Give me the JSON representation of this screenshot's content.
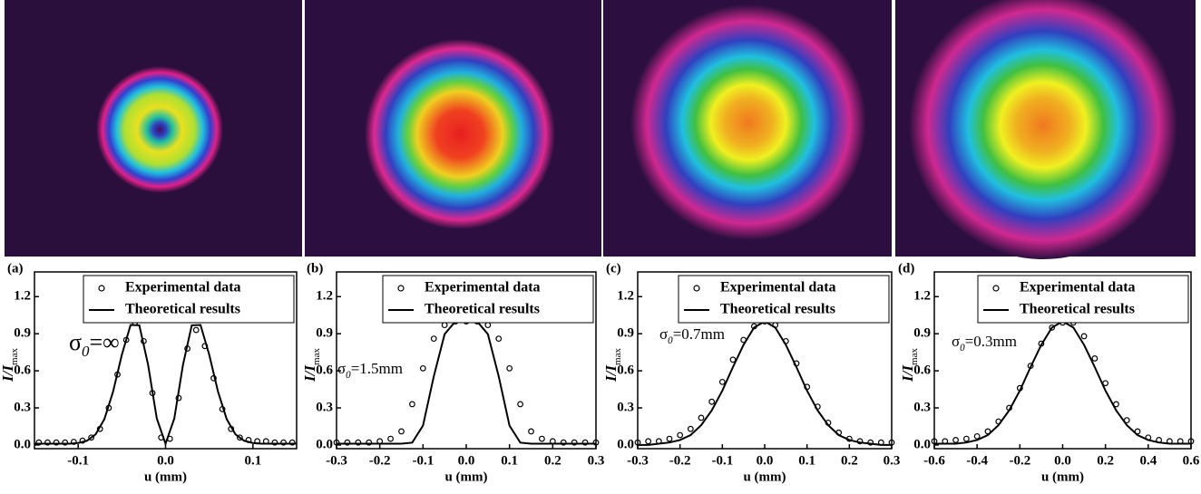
{
  "chart_data": [
    {
      "type": "line",
      "label": "(a)",
      "annotation": {
        "symbol": "σ",
        "subscript": "0",
        "text": "=∞"
      },
      "xlabel": "u (mm)",
      "ylabel": "I/I",
      "ylabel_sub": "max",
      "xlim": [
        -0.15,
        0.15
      ],
      "xticks": [
        -0.1,
        {
          "value": 0,
          "label": "0.0"
        },
        0.1
      ],
      "ylim": [
        -0.03,
        1.4
      ],
      "yticks": [
        {
          "value": 0,
          "label": "0.0"
        },
        0.3,
        0.6,
        0.9,
        1.2
      ],
      "legend": "upper right",
      "series": [
        {
          "name": "Experimental data",
          "style": "markers",
          "color": "#000000",
          "x": [
            -0.145,
            -0.135,
            -0.125,
            -0.115,
            -0.105,
            -0.095,
            -0.085,
            -0.075,
            -0.065,
            -0.055,
            -0.045,
            -0.035,
            -0.025,
            -0.015,
            -0.005,
            0.005,
            0.015,
            0.025,
            0.035,
            0.045,
            0.055,
            0.065,
            0.075,
            0.085,
            0.095,
            0.105,
            0.115,
            0.125,
            0.135,
            0.145
          ],
          "values": [
            0.02,
            0.02,
            0.02,
            0.02,
            0.025,
            0.035,
            0.06,
            0.13,
            0.3,
            0.57,
            0.85,
            0.99,
            0.84,
            0.42,
            0.06,
            0.05,
            0.38,
            0.78,
            0.93,
            0.8,
            0.54,
            0.29,
            0.13,
            0.06,
            0.04,
            0.03,
            0.03,
            0.02,
            0.02,
            0.02
          ]
        },
        {
          "name": "Theoretical results",
          "style": "line",
          "color": "#000000",
          "x": [
            -0.15,
            -0.14,
            -0.13,
            -0.12,
            -0.11,
            -0.1,
            -0.09,
            -0.08,
            -0.07,
            -0.06,
            -0.05,
            -0.04,
            -0.03,
            -0.02,
            -0.01,
            0,
            0.01,
            0.02,
            0.03,
            0.04,
            0.05,
            0.06,
            0.07,
            0.08,
            0.09,
            0.1,
            0.11,
            0.12,
            0.13,
            0.14,
            0.15
          ],
          "values": [
            0.01,
            0.01,
            0.01,
            0.01,
            0.01,
            0.016,
            0.034,
            0.086,
            0.209,
            0.433,
            0.73,
            0.971,
            0.968,
            0.65,
            0.214,
            0.01,
            0.214,
            0.65,
            0.968,
            0.971,
            0.73,
            0.433,
            0.209,
            0.086,
            0.034,
            0.016,
            0.01,
            0.01,
            0.01,
            0.01,
            0.01
          ]
        }
      ]
    },
    {
      "type": "line",
      "label": "(b)",
      "annotation": {
        "symbol": "σ",
        "subscript": "0",
        "text": "=1.5mm"
      },
      "xlabel": "u (mm)",
      "ylabel": "I/I",
      "ylabel_sub": "max",
      "xlim": [
        -0.3,
        0.3
      ],
      "xticks": [
        -0.3,
        -0.2,
        -0.1,
        {
          "value": 0,
          "label": "0.0"
        },
        0.1,
        0.2,
        0.3
      ],
      "ylim": [
        -0.03,
        1.4
      ],
      "yticks": [
        {
          "value": 0,
          "label": "0.0"
        },
        0.3,
        0.6,
        0.9,
        1.2
      ],
      "legend": "upper right",
      "series": [
        {
          "name": "Experimental data",
          "style": "markers",
          "color": "#000000",
          "x": [
            -0.3,
            -0.275,
            -0.25,
            -0.225,
            -0.2,
            -0.175,
            -0.15,
            -0.125,
            -0.1,
            -0.075,
            -0.05,
            -0.025,
            0,
            0.025,
            0.05,
            0.075,
            0.1,
            0.125,
            0.15,
            0.175,
            0.2,
            0.225,
            0.25,
            0.275,
            0.3
          ],
          "values": [
            0.02,
            0.02,
            0.02,
            0.02,
            0.03,
            0.05,
            0.11,
            0.33,
            0.62,
            0.86,
            0.97,
            1.0,
            1.0,
            1.0,
            0.97,
            0.86,
            0.62,
            0.33,
            0.11,
            0.05,
            0.03,
            0.02,
            0.02,
            0.02,
            0.02
          ]
        },
        {
          "name": "Theoretical results",
          "style": "line",
          "color": "#000000",
          "x": [
            -0.3,
            -0.275,
            -0.25,
            -0.225,
            -0.2,
            -0.175,
            -0.15,
            -0.125,
            -0.1,
            -0.075,
            -0.05,
            -0.025,
            0,
            0.025,
            0.05,
            0.075,
            0.1,
            0.125,
            0.15,
            0.175,
            0.2,
            0.225,
            0.25,
            0.275,
            0.3
          ],
          "values": [
            0.01,
            0.01,
            0.01,
            0.01,
            0.01,
            0.01,
            0.01,
            0.019,
            0.157,
            0.556,
            0.897,
            1.0,
            1.0,
            1.0,
            0.897,
            0.556,
            0.157,
            0.019,
            0.01,
            0.01,
            0.01,
            0.01,
            0.01,
            0.01,
            0.01
          ]
        }
      ]
    },
    {
      "type": "line",
      "label": "(c)",
      "annotation": {
        "symbol": "σ",
        "subscript": "0",
        "text": "=0.7mm"
      },
      "xlabel": "u (mm)",
      "ylabel": "I/I",
      "ylabel_sub": "max",
      "xlim": [
        -0.3,
        0.3
      ],
      "xticks": [
        -0.3,
        -0.2,
        -0.1,
        {
          "value": 0,
          "label": "0.0"
        },
        0.1,
        0.2,
        0.3
      ],
      "ylim": [
        -0.03,
        1.4
      ],
      "yticks": [
        {
          "value": 0,
          "label": "0.0"
        },
        0.3,
        0.6,
        0.9,
        1.2
      ],
      "legend": "upper right",
      "series": [
        {
          "name": "Experimental data",
          "style": "markers",
          "color": "#000000",
          "x": [
            -0.3,
            -0.275,
            -0.25,
            -0.225,
            -0.2,
            -0.175,
            -0.15,
            -0.125,
            -0.1,
            -0.075,
            -0.05,
            -0.025,
            0,
            0.025,
            0.05,
            0.075,
            0.1,
            0.125,
            0.15,
            0.175,
            0.2,
            0.225,
            0.25,
            0.275,
            0.3
          ],
          "values": [
            0.02,
            0.03,
            0.03,
            0.05,
            0.08,
            0.13,
            0.22,
            0.35,
            0.51,
            0.69,
            0.85,
            0.96,
            1.0,
            0.97,
            0.84,
            0.66,
            0.47,
            0.31,
            0.18,
            0.1,
            0.05,
            0.03,
            0.02,
            0.02,
            0.02
          ]
        },
        {
          "name": "Theoretical results",
          "style": "line",
          "color": "#000000",
          "x": [
            -0.3,
            -0.275,
            -0.25,
            -0.225,
            -0.2,
            -0.175,
            -0.15,
            -0.125,
            -0.1,
            -0.075,
            -0.05,
            -0.025,
            0,
            0.025,
            0.05,
            0.075,
            0.1,
            0.125,
            0.15,
            0.175,
            0.2,
            0.225,
            0.25,
            0.275,
            0.3
          ],
          "values": [
            0,
            0,
            0.01,
            0.02,
            0.04,
            0.08,
            0.16,
            0.28,
            0.44,
            0.63,
            0.81,
            0.95,
            1.0,
            0.95,
            0.81,
            0.63,
            0.44,
            0.28,
            0.16,
            0.08,
            0.04,
            0.02,
            0.01,
            0,
            0
          ]
        }
      ]
    },
    {
      "type": "line",
      "label": "(d)",
      "annotation": {
        "symbol": "σ",
        "subscript": "0",
        "text": "=0.3mm"
      },
      "xlabel": "u (mm)",
      "ylabel": "I/I",
      "ylabel_sub": "max",
      "xlim": [
        -0.6,
        0.6
      ],
      "xticks": [
        -0.6,
        -0.4,
        -0.2,
        {
          "value": 0,
          "label": "0.0"
        },
        0.2,
        0.4,
        0.6
      ],
      "ylim": [
        -0.03,
        1.4
      ],
      "yticks": [
        {
          "value": 0,
          "label": "0.0"
        },
        0.3,
        0.6,
        0.9,
        1.2
      ],
      "legend": "upper right",
      "series": [
        {
          "name": "Experimental data",
          "style": "markers",
          "color": "#000000",
          "x": [
            -0.6,
            -0.55,
            -0.5,
            -0.45,
            -0.4,
            -0.35,
            -0.3,
            -0.25,
            -0.2,
            -0.15,
            -0.1,
            -0.05,
            0,
            0.05,
            0.1,
            0.15,
            0.2,
            0.25,
            0.3,
            0.35,
            0.4,
            0.45,
            0.5,
            0.55,
            0.6
          ],
          "values": [
            0.03,
            0.03,
            0.04,
            0.05,
            0.07,
            0.11,
            0.19,
            0.3,
            0.46,
            0.64,
            0.82,
            0.95,
            0.99,
            0.99,
            0.88,
            0.7,
            0.5,
            0.33,
            0.2,
            0.11,
            0.06,
            0.04,
            0.03,
            0.03,
            0.03
          ]
        },
        {
          "name": "Theoretical results",
          "style": "line",
          "color": "#000000",
          "x": [
            -0.6,
            -0.55,
            -0.5,
            -0.45,
            -0.4,
            -0.35,
            -0.3,
            -0.25,
            -0.2,
            -0.15,
            -0.1,
            -0.05,
            0,
            0.05,
            0.1,
            0.15,
            0.2,
            0.25,
            0.3,
            0.35,
            0.4,
            0.45,
            0.5,
            0.55,
            0.6
          ],
          "values": [
            0.01,
            0.01,
            0.01,
            0.02,
            0.04,
            0.08,
            0.16,
            0.28,
            0.44,
            0.63,
            0.81,
            0.95,
            1.0,
            0.95,
            0.81,
            0.63,
            0.44,
            0.28,
            0.16,
            0.08,
            0.04,
            0.02,
            0.01,
            0.01,
            0.01
          ]
        }
      ]
    }
  ]
}
